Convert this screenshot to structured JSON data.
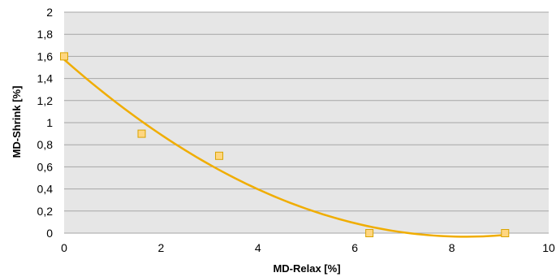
{
  "chart_data": {
    "type": "scatter",
    "xlabel": "MD-Relax [%]",
    "ylabel": "MD-Shrink [%]",
    "xlim": [
      0,
      10
    ],
    "ylim": [
      0,
      2
    ],
    "x_ticks": [
      "0",
      "2",
      "4",
      "6",
      "8",
      "10"
    ],
    "y_ticks": [
      "0",
      "0,2",
      "0,4",
      "0,6",
      "0,8",
      "1",
      "1,2",
      "1,4",
      "1,6",
      "1,8",
      "2"
    ],
    "grid": "horizontal",
    "series": [
      {
        "x": [
          0,
          1.6,
          3.2,
          6.3,
          9.1
        ],
        "y": [
          1.6,
          0.9,
          0.7,
          0,
          0
        ],
        "marker": "square"
      }
    ],
    "trendline": {
      "type": "polynomial",
      "x_range": [
        0,
        9.1
      ],
      "x": [
        0,
        2,
        4,
        6,
        8,
        9.1
      ],
      "y": [
        1.54,
        1.0,
        0.47,
        0.17,
        0.03,
        0.0
      ]
    },
    "colors": {
      "plot_background": "#e6e6e6",
      "gridline": "#a6a6a6",
      "marker_fill": "#ffd680",
      "marker_stroke": "#d9a400",
      "trendline": "#f0ad00"
    }
  }
}
